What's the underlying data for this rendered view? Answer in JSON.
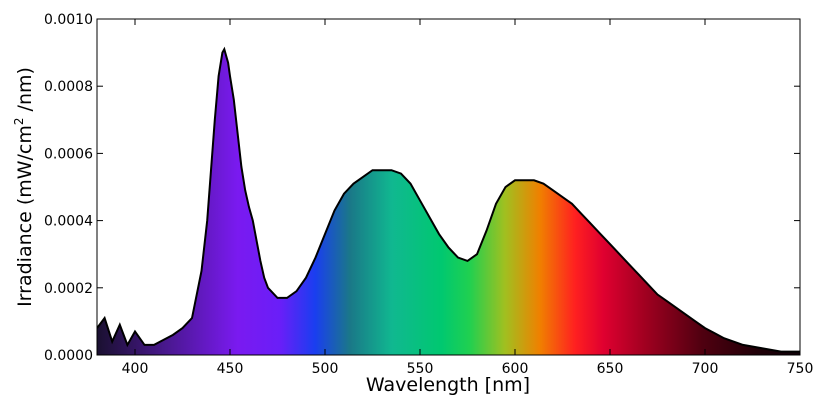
{
  "chart_data": {
    "type": "area",
    "title": "",
    "xlabel": "Wavelength [nm]",
    "ylabel": "Irradiance (mW/cm",
    "ylabel_superscript": "2",
    "ylabel_suffix": " /nm)",
    "xlim": [
      380,
      750
    ],
    "ylim": [
      0,
      0.001
    ],
    "xticks": [
      400,
      450,
      500,
      550,
      600,
      650,
      700,
      750
    ],
    "xtick_labels": [
      "400",
      "450",
      "500",
      "550",
      "600",
      "650",
      "700",
      "750"
    ],
    "yticks": [
      0,
      0.0002,
      0.0004,
      0.0006,
      0.0008,
      0.001
    ],
    "ytick_labels": [
      "0.0000",
      "0.0002",
      "0.0004",
      "0.0006",
      "0.0008",
      "0.0010"
    ],
    "grid": false,
    "fill": "visible-spectrum gradient under curve",
    "line_color": "#000000",
    "series": [
      {
        "x": [
          380,
          384,
          388,
          392,
          396,
          400,
          405,
          410,
          415,
          420,
          425,
          430,
          435,
          438,
          440,
          442,
          444,
          446,
          447,
          448,
          449,
          450,
          452,
          454,
          456,
          458,
          460,
          462,
          464,
          466,
          468,
          470,
          475,
          480,
          485,
          490,
          495,
          500,
          505,
          510,
          515,
          520,
          525,
          530,
          535,
          540,
          545,
          550,
          555,
          560,
          565,
          570,
          575,
          580,
          585,
          590,
          595,
          600,
          605,
          610,
          615,
          620,
          625,
          630,
          635,
          640,
          645,
          650,
          655,
          660,
          665,
          670,
          675,
          680,
          685,
          690,
          695,
          700,
          705,
          710,
          720,
          730,
          740,
          750
        ],
        "y": [
          8e-05,
          0.00011,
          4e-05,
          9e-05,
          3e-05,
          7e-05,
          3e-05,
          3e-05,
          4.5e-05,
          6e-05,
          8e-05,
          0.00011,
          0.00025,
          0.0004,
          0.00055,
          0.0007,
          0.00083,
          0.0009,
          0.00091,
          0.00089,
          0.00087,
          0.00083,
          0.00076,
          0.00066,
          0.00056,
          0.00049,
          0.00044,
          0.0004,
          0.00034,
          0.00028,
          0.00023,
          0.0002,
          0.00017,
          0.00017,
          0.00019,
          0.00023,
          0.00029,
          0.00036,
          0.00043,
          0.00048,
          0.00051,
          0.00053,
          0.00055,
          0.00055,
          0.00055,
          0.00054,
          0.00051,
          0.00046,
          0.00041,
          0.00036,
          0.00032,
          0.00029,
          0.00028,
          0.0003,
          0.00037,
          0.00045,
          0.0005,
          0.00052,
          0.00052,
          0.00052,
          0.00051,
          0.00049,
          0.00047,
          0.00045,
          0.00042,
          0.00039,
          0.00036,
          0.00033,
          0.0003,
          0.00027,
          0.00024,
          0.00021,
          0.00018,
          0.00016,
          0.00014,
          0.00012,
          0.0001,
          8e-05,
          6.5e-05,
          5e-05,
          3e-05,
          2e-05,
          1e-05,
          1e-05
        ]
      }
    ]
  }
}
